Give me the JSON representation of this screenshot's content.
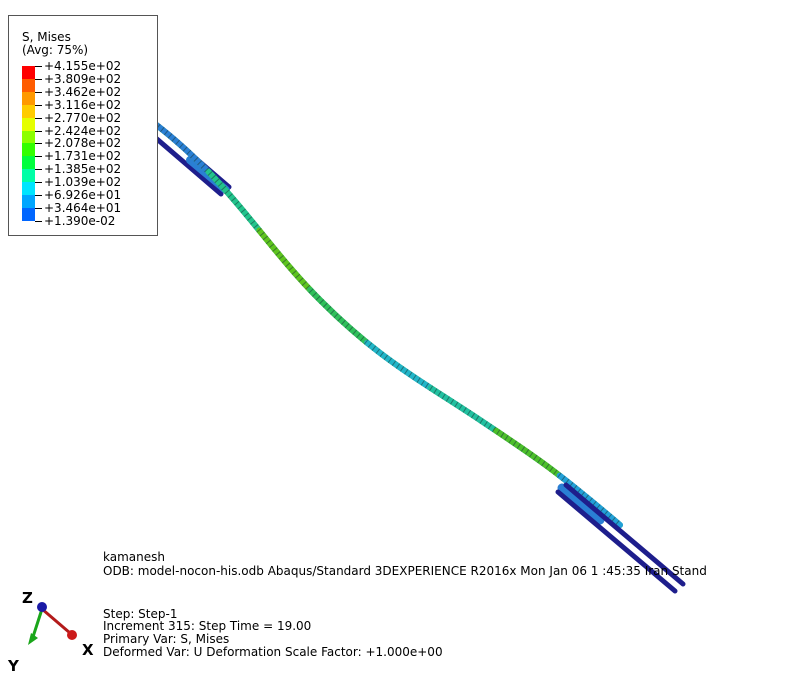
{
  "legend": {
    "title_line1": "S, Mises",
    "title_line2": "(Avg: 75%)",
    "levels": [
      {
        "label": "+4.155e+02",
        "color": "#ff0000"
      },
      {
        "label": "+3.809e+02",
        "color": "#ff5c00"
      },
      {
        "label": "+3.462e+02",
        "color": "#ff9900"
      },
      {
        "label": "+3.116e+02",
        "color": "#ffcc00"
      },
      {
        "label": "+2.770e+02",
        "color": "#e5ff00"
      },
      {
        "label": "+2.424e+02",
        "color": "#8cff00"
      },
      {
        "label": "+2.078e+02",
        "color": "#33ff00"
      },
      {
        "label": "+1.731e+02",
        "color": "#00ff3d"
      },
      {
        "label": "+1.385e+02",
        "color": "#00ffa6"
      },
      {
        "label": "+1.039e+02",
        "color": "#00e5ff"
      },
      {
        "label": "+6.926e+01",
        "color": "#00a6ff"
      },
      {
        "label": "+3.464e+01",
        "color": "#0066ff"
      },
      {
        "label": "+1.390e-02",
        "color": "#0000ff"
      }
    ]
  },
  "info": {
    "user": "kamanesh",
    "odb_line": "ODB: model-nocon-his.odb    Abaqus/Standard 3DEXPERIENCE R2016x    Mon Jan 06 1 :45:35 Iran Stand",
    "step": "Step: Step-1",
    "increment": "Increment    315: Step Time =    19.00",
    "primary_var": "Primary Var: S, Mises",
    "deformed_var": "Deformed Var: U   Deformation Scale Factor: +1.000e+00"
  },
  "triad": {
    "z_label": "Z",
    "x_label": "X",
    "y_label": "Y",
    "z_color": "#1a1aa6",
    "x_color": "#b31a1a",
    "y_color": "#1aa61a"
  },
  "model": {
    "plate_color": "#1e1e8c",
    "beam_colors": [
      "#2a7fd4",
      "#22c48c",
      "#5ec31e",
      "#2fbf5a",
      "#22b5c8",
      "#22c0a0",
      "#4cbf2a",
      "#22a0d8"
    ]
  }
}
